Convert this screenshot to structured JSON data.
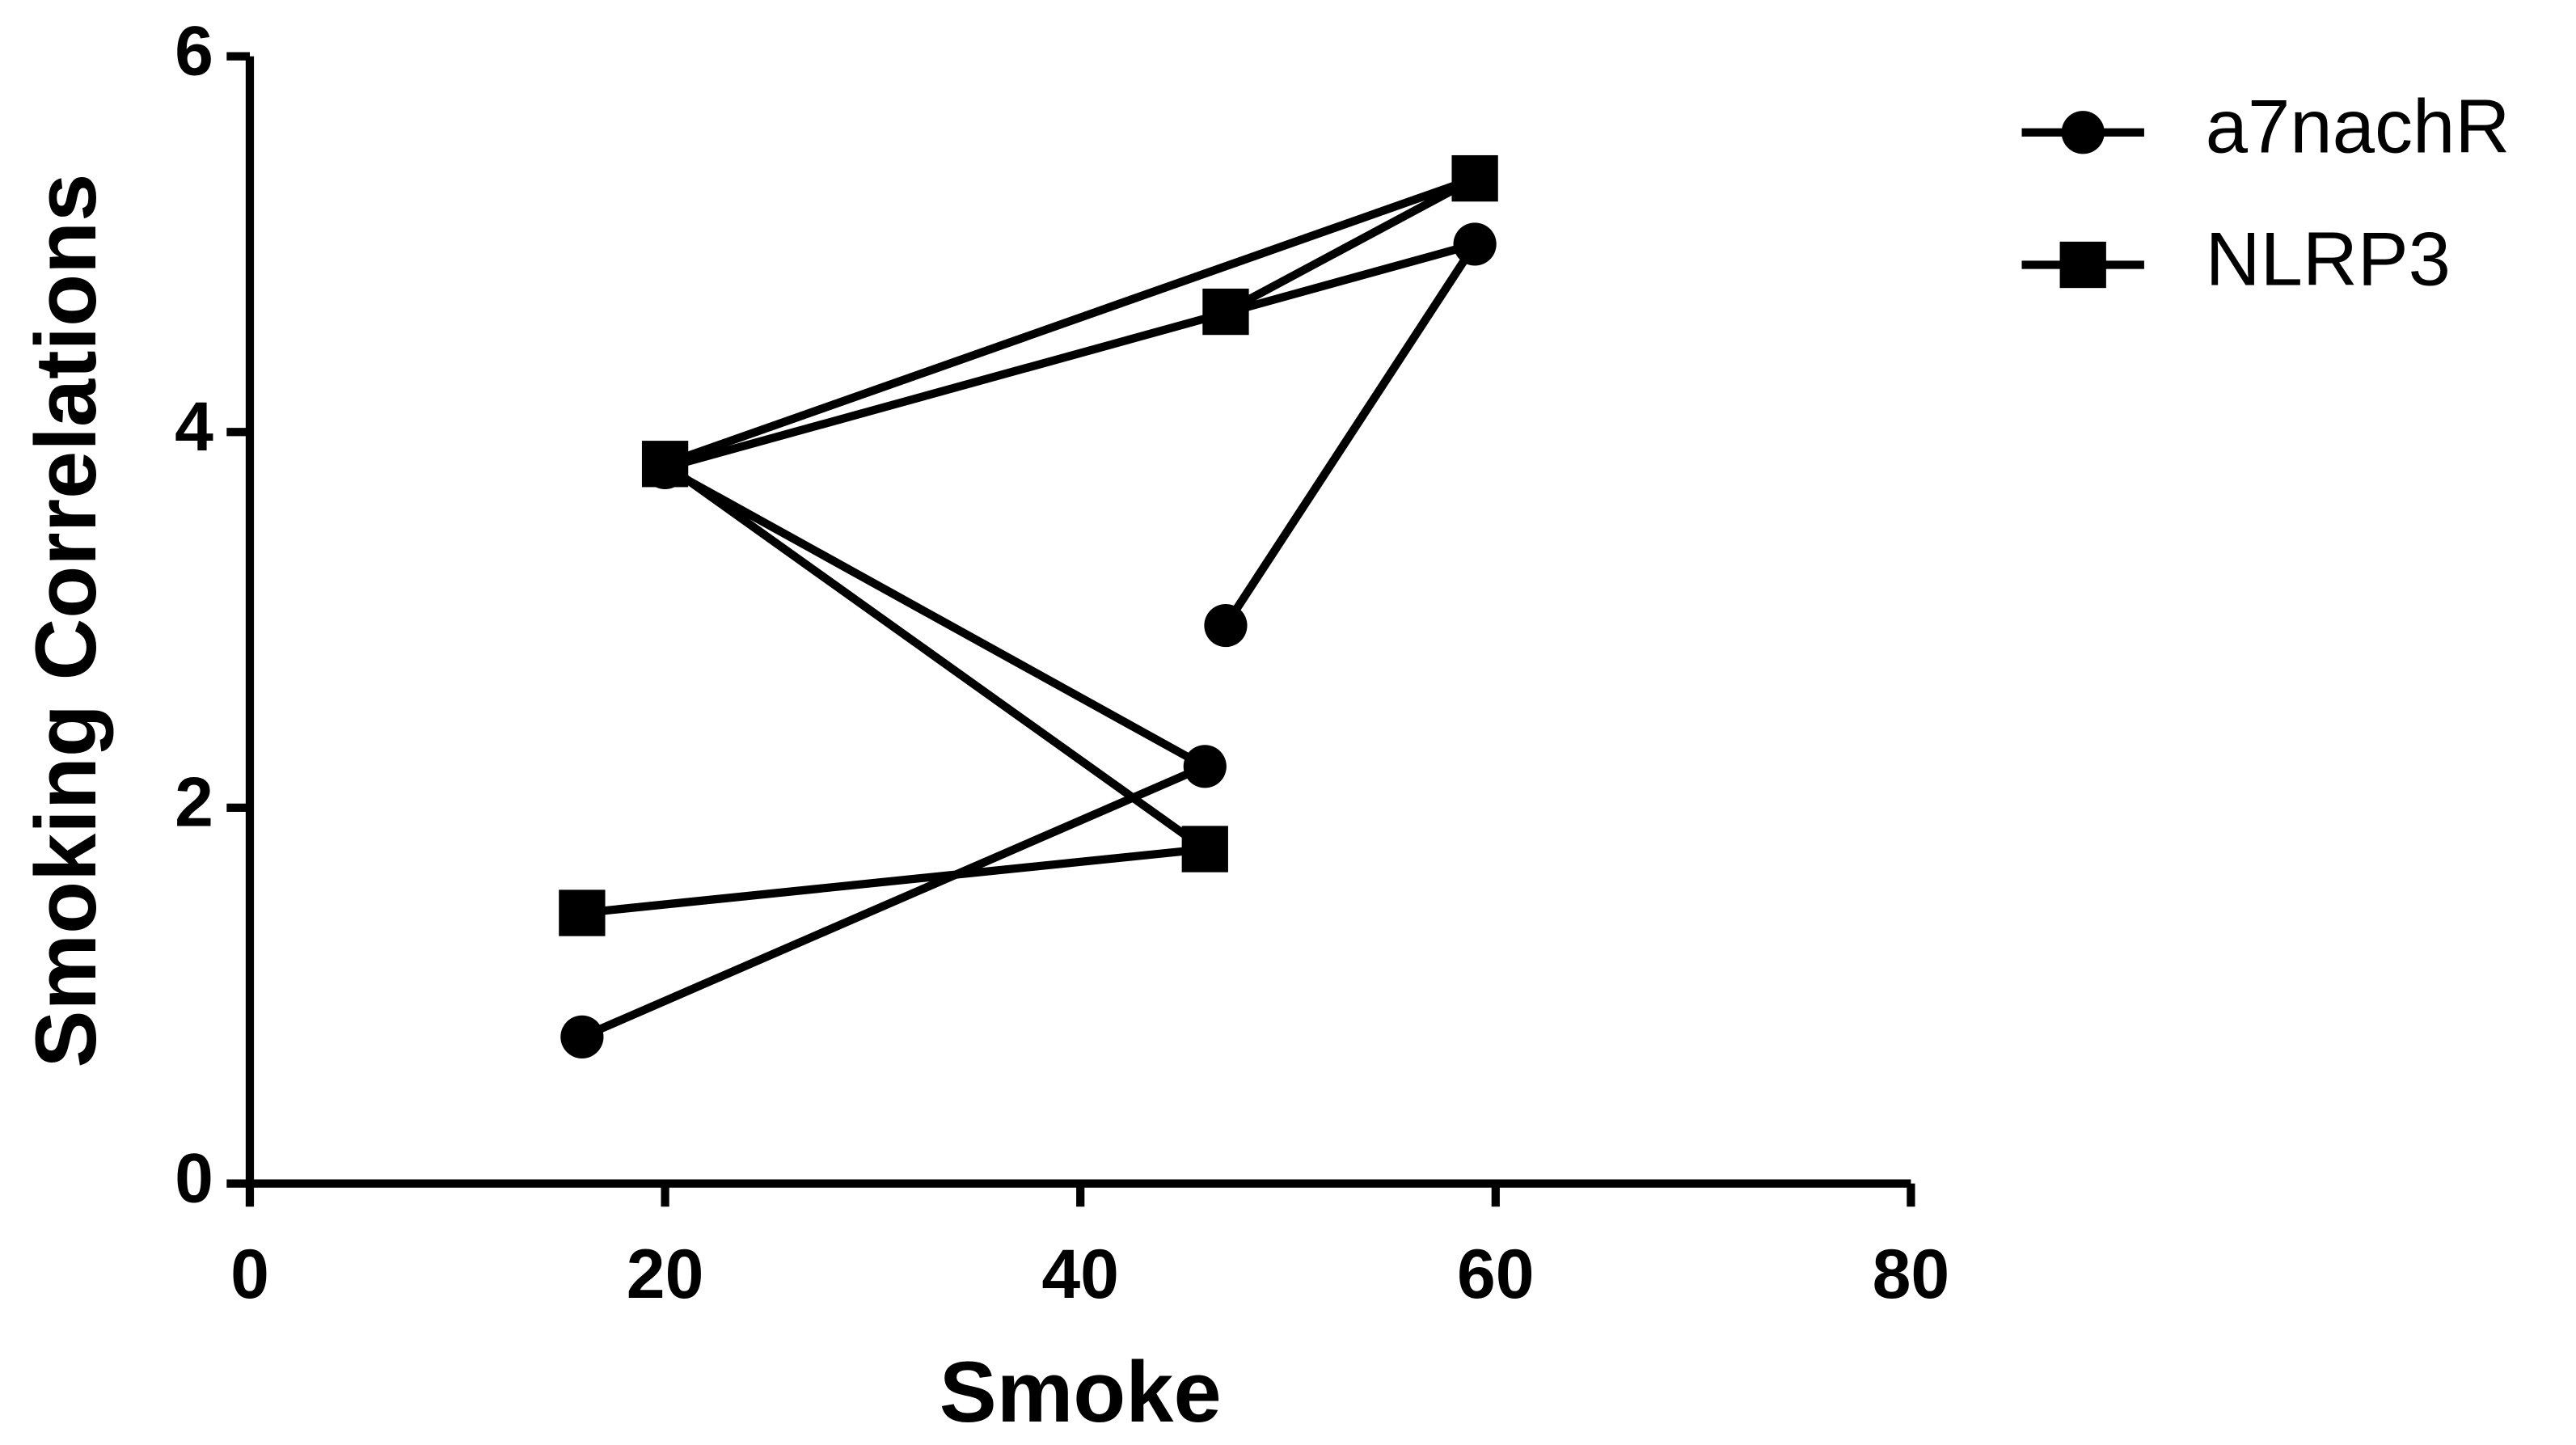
{
  "chart_data": {
    "type": "line",
    "xlabel": "Smoke",
    "ylabel": "Smoking Correlations",
    "x": [
      16,
      46,
      20,
      59,
      47
    ],
    "series": [
      {
        "name": "a7nachR",
        "color": "#000000",
        "marker": "circle",
        "values": [
          0.78,
          2.22,
          3.81,
          5.0,
          2.97
        ]
      },
      {
        "name": "NLRP3",
        "color": "#000000",
        "marker": "square",
        "values": [
          1.44,
          1.78,
          3.83,
          5.35,
          4.64
        ]
      }
    ],
    "xlim": [
      0,
      80
    ],
    "xticks": [
      0,
      20,
      40,
      60,
      80
    ],
    "ylim": [
      0,
      6
    ],
    "yticks": [
      0,
      2,
      4,
      6
    ],
    "grid": false,
    "legend": "right"
  }
}
